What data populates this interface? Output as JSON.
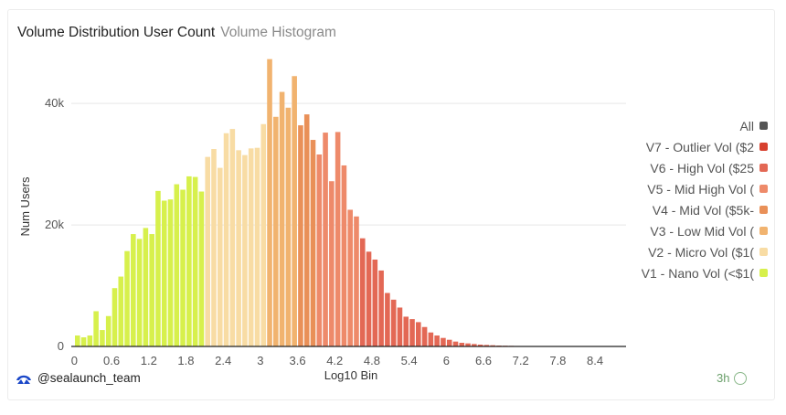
{
  "header": {
    "title": "Volume Distribution User Count",
    "subtitle": "Volume Histogram"
  },
  "credit": {
    "handle": "@sealaunch_team",
    "icon": "sealaunch-logo-icon"
  },
  "badge": {
    "label": "3h"
  },
  "legend": [
    {
      "label": "All",
      "color": "#555555"
    },
    {
      "label": "V7 - Outlier Vol ($2",
      "color": "#d7402e"
    },
    {
      "label": "V6 - High Vol ($25",
      "color": "#e36855"
    },
    {
      "label": "V5 - Mid High Vol (",
      "color": "#ee8a6a"
    },
    {
      "label": "V4 - Mid Vol ($5k-",
      "color": "#e99058"
    },
    {
      "label": "V3 - Low Mid Vol (",
      "color": "#f1b36f"
    },
    {
      "label": "V2 - Micro Vol ($1(",
      "color": "#f8dca4"
    },
    {
      "label": "V1 - Nano Vol (<$1(",
      "color": "#d7f04c"
    }
  ],
  "chart_data": {
    "type": "bar",
    "xlabel": "Log10 Bin",
    "ylabel": "Num Users",
    "xlim": [
      -0.05,
      8.9
    ],
    "ylim": [
      0,
      48000
    ],
    "bin_width": 0.1,
    "x_ticks": [
      "0",
      "0.6",
      "1.2",
      "1.8",
      "2.4",
      "3",
      "3.6",
      "4.2",
      "4.8",
      "5.4",
      "6",
      "6.6",
      "7.2",
      "7.8",
      "8.4"
    ],
    "y_ticks": [
      {
        "value": 0,
        "label": "0"
      },
      {
        "value": 20000,
        "label": "20k"
      },
      {
        "value": 40000,
        "label": "40k"
      }
    ],
    "grid": true,
    "legend_position": "right",
    "series": [
      {
        "name": "V1 - Nano Vol (<$1(",
        "color": "#d7f04c",
        "start": 0.0,
        "values": [
          1800,
          1500,
          1800,
          5800,
          2700,
          5000,
          9600,
          11500,
          15700,
          18500,
          17700,
          19500,
          18500,
          25600,
          24000,
          24200,
          26700,
          25800,
          28000,
          27900,
          25500
        ]
      },
      {
        "name": "V2 - Micro Vol ($1(",
        "color": "#f8dca4",
        "start": 2.1,
        "values": [
          31200,
          32500,
          29400,
          35100,
          35800,
          32300,
          31500,
          32600,
          32700,
          36600
        ]
      },
      {
        "name": "V3 - Low Mid Vol (",
        "color": "#f1b36f",
        "start": 3.1,
        "values": [
          47300,
          37800,
          41900,
          39300,
          44500
        ]
      },
      {
        "name": "V4 - Mid Vol ($5k-",
        "color": "#e99058",
        "start": 3.6,
        "values": [
          36400,
          38200,
          34000
        ]
      },
      {
        "name": "V5 - Mid High Vol (",
        "color": "#ee8a6a",
        "start": 3.9,
        "values": [
          31600,
          35200,
          27200,
          35300,
          29800,
          22500,
          21400
        ]
      },
      {
        "name": "V6 - High Vol ($25",
        "color": "#e36855",
        "start": 4.6,
        "values": [
          17800,
          15600,
          14300,
          12500,
          8800,
          7700,
          6400,
          4900,
          4500,
          4000,
          3200,
          2300,
          1800,
          1400,
          1100,
          800,
          600,
          500,
          400,
          300,
          250,
          200,
          150,
          120,
          100,
          80,
          60,
          50,
          40,
          30,
          25,
          20,
          15,
          10,
          8,
          5
        ]
      }
    ]
  }
}
